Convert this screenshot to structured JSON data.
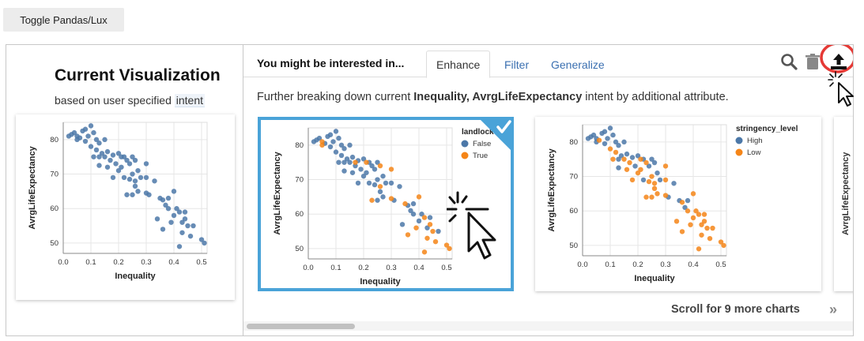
{
  "toolbar": {
    "toggle_label": "Toggle Pandas/Lux"
  },
  "current_viz": {
    "title": "Current Visualization",
    "subtitle_prefix": "based on user specified ",
    "subtitle_intent": "intent"
  },
  "recommendations": {
    "header": "You might be interested in...",
    "tabs": [
      {
        "label": "Enhance",
        "active": true
      },
      {
        "label": "Filter",
        "active": false
      },
      {
        "label": "Generalize",
        "active": false
      }
    ],
    "description_prefix": "Further breaking down current ",
    "description_bold": "Inequality, AvrgLifeExpectancy",
    "description_suffix": " intent by additional attribute.",
    "scroll_message": "Scroll for 9 more charts",
    "scroll_arrows": "»",
    "icons": [
      "search-icon",
      "trash-icon",
      "export-icon"
    ],
    "highlight_color": "#e53935",
    "selected_border_color": "#4aa3d8"
  },
  "chart_data": [
    {
      "type": "scatter",
      "xlabel": "Inequality",
      "ylabel": "AvrgLifeExpectancy",
      "xticks": [
        "0.0",
        "0.1",
        "0.2",
        "0.3",
        "0.4",
        "0.5"
      ],
      "yticks": [
        "50",
        "60",
        "70",
        "80"
      ],
      "xlim": [
        0,
        0.52
      ],
      "ylim": [
        47,
        85
      ],
      "series": [
        {
          "color": "#4c78a8",
          "points": [
            [
              0.02,
              81
            ],
            [
              0.03,
              81.5
            ],
            [
              0.04,
              82
            ],
            [
              0.05,
              81
            ],
            [
              0.06,
              80.5
            ],
            [
              0.07,
              82.5
            ],
            [
              0.08,
              83
            ],
            [
              0.09,
              81
            ],
            [
              0.1,
              84
            ],
            [
              0.11,
              82
            ],
            [
              0.12,
              80
            ],
            [
              0.08,
              79.5
            ],
            [
              0.05,
              80
            ],
            [
              0.1,
              78
            ],
            [
              0.13,
              79
            ],
            [
              0.15,
              80
            ],
            [
              0.12,
              77
            ],
            [
              0.14,
              76
            ],
            [
              0.16,
              76.5
            ],
            [
              0.11,
              75
            ],
            [
              0.13,
              75
            ],
            [
              0.15,
              75
            ],
            [
              0.17,
              74
            ],
            [
              0.18,
              75.5
            ],
            [
              0.2,
              76
            ],
            [
              0.22,
              75
            ],
            [
              0.23,
              74
            ],
            [
              0.24,
              73
            ],
            [
              0.19,
              73
            ],
            [
              0.21,
              72
            ],
            [
              0.25,
              75
            ],
            [
              0.26,
              74
            ],
            [
              0.2,
              71
            ],
            [
              0.16,
              72
            ],
            [
              0.13,
              72.5
            ],
            [
              0.25,
              70
            ],
            [
              0.27,
              71
            ],
            [
              0.3,
              73
            ],
            [
              0.3,
              69
            ],
            [
              0.22,
              69
            ],
            [
              0.24,
              68.5
            ],
            [
              0.26,
              68
            ],
            [
              0.28,
              69
            ],
            [
              0.33,
              68
            ],
            [
              0.27,
              65
            ],
            [
              0.23,
              64
            ],
            [
              0.25,
              64
            ],
            [
              0.3,
              64.5
            ],
            [
              0.31,
              64
            ],
            [
              0.35,
              63
            ],
            [
              0.36,
              62.5
            ],
            [
              0.38,
              63
            ],
            [
              0.4,
              65
            ],
            [
              0.37,
              61
            ],
            [
              0.38,
              60
            ],
            [
              0.41,
              60
            ],
            [
              0.42,
              59
            ],
            [
              0.44,
              59
            ],
            [
              0.44,
              57
            ],
            [
              0.4,
              58
            ],
            [
              0.39,
              56
            ],
            [
              0.34,
              57
            ],
            [
              0.43,
              56
            ],
            [
              0.45,
              55
            ],
            [
              0.47,
              55
            ],
            [
              0.36,
              54
            ],
            [
              0.43,
              53
            ],
            [
              0.46,
              52
            ],
            [
              0.5,
              51
            ],
            [
              0.51,
              50
            ],
            [
              0.42,
              49
            ],
            [
              0.26,
              66.5
            ],
            [
              0.18,
              69
            ],
            [
              0.21,
              75
            ]
          ]
        }
      ]
    },
    {
      "type": "scatter",
      "xlabel": "Inequality",
      "ylabel": "AvrgLifeExpectancy",
      "legend_title": "landlock",
      "legend_position": "top-right",
      "xticks": [
        "0.0",
        "0.1",
        "0.2",
        "0.3",
        "0.4",
        "0.5"
      ],
      "yticks": [
        "50",
        "60",
        "70",
        "80"
      ],
      "xlim": [
        0,
        0.52
      ],
      "ylim": [
        47,
        85
      ],
      "series": [
        {
          "name": "False",
          "color": "#4c78a8",
          "points": [
            [
              0.02,
              81
            ],
            [
              0.03,
              81.5
            ],
            [
              0.04,
              82
            ],
            [
              0.06,
              80.5
            ],
            [
              0.07,
              82.5
            ],
            [
              0.08,
              83
            ],
            [
              0.09,
              81
            ],
            [
              0.1,
              84
            ],
            [
              0.11,
              82
            ],
            [
              0.12,
              80
            ],
            [
              0.08,
              79.5
            ],
            [
              0.1,
              78
            ],
            [
              0.13,
              79
            ],
            [
              0.15,
              80
            ],
            [
              0.12,
              77
            ],
            [
              0.14,
              76
            ],
            [
              0.16,
              76.5
            ],
            [
              0.11,
              75
            ],
            [
              0.13,
              75
            ],
            [
              0.15,
              75
            ],
            [
              0.17,
              74
            ],
            [
              0.18,
              75.5
            ],
            [
              0.2,
              76
            ],
            [
              0.22,
              75
            ],
            [
              0.23,
              74
            ],
            [
              0.24,
              73
            ],
            [
              0.19,
              73
            ],
            [
              0.21,
              72
            ],
            [
              0.25,
              75
            ],
            [
              0.2,
              71
            ],
            [
              0.16,
              72
            ],
            [
              0.13,
              72.5
            ],
            [
              0.25,
              70
            ],
            [
              0.27,
              71
            ],
            [
              0.3,
              69
            ],
            [
              0.22,
              69
            ],
            [
              0.24,
              68.5
            ],
            [
              0.28,
              69
            ],
            [
              0.33,
              68
            ],
            [
              0.27,
              65
            ],
            [
              0.25,
              64
            ],
            [
              0.31,
              64
            ],
            [
              0.36,
              62.5
            ],
            [
              0.38,
              63
            ],
            [
              0.37,
              61
            ],
            [
              0.38,
              60
            ],
            [
              0.41,
              60
            ],
            [
              0.44,
              59
            ],
            [
              0.4,
              58
            ],
            [
              0.34,
              57
            ],
            [
              0.43,
              56
            ],
            [
              0.47,
              55
            ],
            [
              0.26,
              66.5
            ],
            [
              0.18,
              69
            ]
          ]
        },
        {
          "name": "True",
          "color": "#f58518",
          "points": [
            [
              0.05,
              81
            ],
            [
              0.05,
              80
            ],
            [
              0.17,
              75
            ],
            [
              0.21,
              75
            ],
            [
              0.26,
              74
            ],
            [
              0.23,
              64
            ],
            [
              0.3,
              73
            ],
            [
              0.26,
              68
            ],
            [
              0.3,
              64.5
            ],
            [
              0.35,
              63
            ],
            [
              0.4,
              65
            ],
            [
              0.42,
              59
            ],
            [
              0.44,
              57
            ],
            [
              0.39,
              56
            ],
            [
              0.45,
              55
            ],
            [
              0.36,
              54
            ],
            [
              0.43,
              53
            ],
            [
              0.46,
              52
            ],
            [
              0.5,
              51
            ],
            [
              0.51,
              50
            ],
            [
              0.42,
              49
            ]
          ]
        }
      ]
    },
    {
      "type": "scatter",
      "xlabel": "Inequality",
      "ylabel": "AvrgLifeExpectancy",
      "legend_title": "stringency_level",
      "legend_position": "top-right",
      "xticks": [
        "0.0",
        "0.1",
        "0.2",
        "0.3",
        "0.4",
        "0.5"
      ],
      "yticks": [
        "50",
        "60",
        "70",
        "80"
      ],
      "xlim": [
        0,
        0.52
      ],
      "ylim": [
        47,
        85
      ],
      "series": [
        {
          "name": "High",
          "color": "#4c78a8",
          "points": [
            [
              0.02,
              81
            ],
            [
              0.03,
              81.5
            ],
            [
              0.04,
              82
            ],
            [
              0.05,
              81
            ],
            [
              0.07,
              82.5
            ],
            [
              0.08,
              83
            ],
            [
              0.09,
              81
            ],
            [
              0.1,
              84
            ],
            [
              0.11,
              82
            ],
            [
              0.12,
              80
            ],
            [
              0.08,
              79.5
            ],
            [
              0.05,
              80
            ],
            [
              0.13,
              79
            ],
            [
              0.15,
              80
            ],
            [
              0.14,
              76
            ],
            [
              0.16,
              76.5
            ],
            [
              0.13,
              75
            ],
            [
              0.18,
              75.5
            ],
            [
              0.2,
              76
            ],
            [
              0.22,
              75
            ],
            [
              0.24,
              73
            ],
            [
              0.19,
              73
            ],
            [
              0.25,
              75
            ],
            [
              0.26,
              74
            ],
            [
              0.13,
              72.5
            ],
            [
              0.27,
              71
            ],
            [
              0.22,
              69
            ],
            [
              0.28,
              69
            ],
            [
              0.33,
              68
            ],
            [
              0.31,
              64
            ],
            [
              0.35,
              63
            ],
            [
              0.38,
              63
            ],
            [
              0.37,
              61
            ]
          ]
        },
        {
          "name": "Low",
          "color": "#f58518",
          "points": [
            [
              0.06,
              80.5
            ],
            [
              0.1,
              78
            ],
            [
              0.12,
              77
            ],
            [
              0.11,
              75
            ],
            [
              0.15,
              75
            ],
            [
              0.17,
              74
            ],
            [
              0.23,
              74
            ],
            [
              0.21,
              72
            ],
            [
              0.2,
              71
            ],
            [
              0.16,
              72
            ],
            [
              0.25,
              70
            ],
            [
              0.3,
              73
            ],
            [
              0.3,
              69
            ],
            [
              0.24,
              68.5
            ],
            [
              0.26,
              68
            ],
            [
              0.27,
              65
            ],
            [
              0.23,
              64
            ],
            [
              0.25,
              64
            ],
            [
              0.3,
              64.5
            ],
            [
              0.36,
              62.5
            ],
            [
              0.4,
              65
            ],
            [
              0.38,
              60
            ],
            [
              0.41,
              60
            ],
            [
              0.42,
              59
            ],
            [
              0.44,
              59
            ],
            [
              0.44,
              57
            ],
            [
              0.4,
              58
            ],
            [
              0.39,
              56
            ],
            [
              0.34,
              57
            ],
            [
              0.43,
              56
            ],
            [
              0.45,
              55
            ],
            [
              0.47,
              55
            ],
            [
              0.36,
              54
            ],
            [
              0.43,
              53
            ],
            [
              0.46,
              52
            ],
            [
              0.5,
              51
            ],
            [
              0.51,
              50
            ],
            [
              0.42,
              49
            ],
            [
              0.26,
              66.5
            ],
            [
              0.18,
              69
            ],
            [
              0.21,
              75
            ]
          ]
        }
      ]
    }
  ]
}
